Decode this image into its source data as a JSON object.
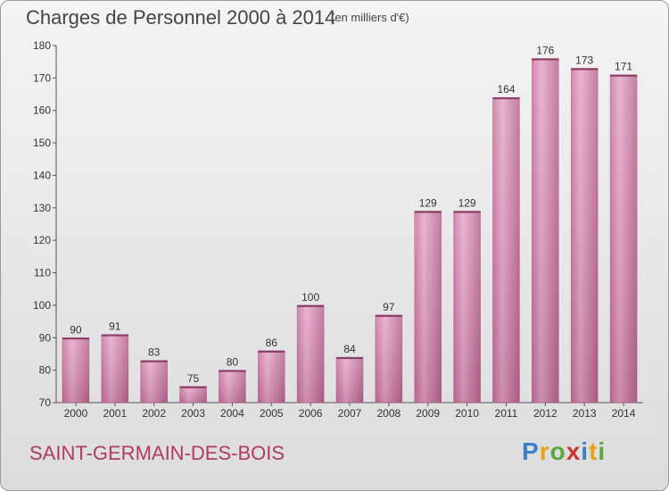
{
  "header": {
    "title": "Charges de Personnel 2000 à 2014",
    "subtitle": "(en milliers d'€)"
  },
  "footer": {
    "commune": "SAINT-GERMAIN-DES-BOIS",
    "logo": {
      "text": "Proxiti",
      "letters": [
        {
          "ch": "P",
          "color": "#3a7fc8"
        },
        {
          "ch": "r",
          "color": "#e8a21a"
        },
        {
          "ch": "o",
          "color": "#5aa83a"
        },
        {
          "ch": "x",
          "color": "#d2322f"
        },
        {
          "ch": "i",
          "color": "#3a7fc8"
        },
        {
          "ch": "t",
          "color": "#e8a21a"
        },
        {
          "ch": "i",
          "color": "#5aa83a"
        }
      ]
    }
  },
  "chart_data": {
    "type": "bar",
    "title": "Charges de Personnel 2000 à 2014",
    "subtitle": "(en milliers d'€)",
    "categories": [
      "2000",
      "2001",
      "2002",
      "2003",
      "2004",
      "2005",
      "2006",
      "2007",
      "2008",
      "2009",
      "2010",
      "2011",
      "2012",
      "2013",
      "2014"
    ],
    "values": [
      90,
      91,
      83,
      75,
      80,
      86,
      100,
      84,
      97,
      129,
      129,
      164,
      176,
      173,
      171
    ],
    "ylim": [
      70,
      180
    ],
    "yticks": [
      70,
      80,
      90,
      100,
      110,
      120,
      130,
      140,
      150,
      160,
      170,
      180
    ],
    "xlabel": "",
    "ylabel": "",
    "grid": false,
    "bar_color": "#d98db5"
  }
}
